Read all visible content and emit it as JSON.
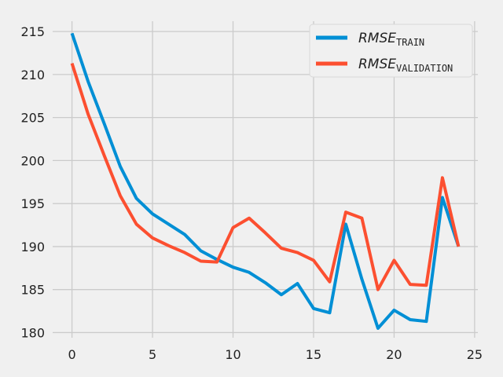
{
  "chart_data": {
    "type": "line",
    "title": "",
    "xlabel": "",
    "ylabel": "",
    "xlim": [
      -1.2,
      25.2
    ],
    "ylim": [
      179.4,
      216.2
    ],
    "xticks": [
      0,
      5,
      10,
      15,
      20,
      25
    ],
    "yticks": [
      180,
      185,
      190,
      195,
      200,
      205,
      210,
      215
    ],
    "grid": true,
    "legend_position": "top-right",
    "x": [
      0,
      1,
      2,
      3,
      4,
      5,
      6,
      7,
      8,
      9,
      10,
      11,
      12,
      13,
      14,
      15,
      16,
      17,
      18,
      19,
      20,
      21,
      22,
      23,
      24
    ],
    "series": [
      {
        "name": "RMSE",
        "subscript": "TRAIN",
        "color": "#008fd5",
        "values": [
          214.8,
          209.2,
          204.3,
          199.3,
          195.6,
          193.8,
          192.6,
          191.4,
          189.5,
          188.5,
          187.6,
          187.0,
          185.8,
          184.4,
          185.7,
          182.8,
          182.3,
          192.6,
          186.2,
          180.5,
          182.6,
          181.5,
          181.3,
          195.7,
          190.0
        ]
      },
      {
        "name": "RMSE",
        "subscript": "VALIDATION",
        "color": "#fc4f30",
        "values": [
          211.3,
          205.4,
          200.6,
          195.9,
          192.6,
          191.0,
          190.1,
          189.3,
          188.3,
          188.2,
          192.2,
          193.3,
          191.6,
          189.8,
          189.3,
          188.4,
          185.9,
          194.0,
          193.3,
          185.0,
          188.4,
          185.6,
          185.5,
          198.0,
          190.0
        ]
      }
    ]
  }
}
